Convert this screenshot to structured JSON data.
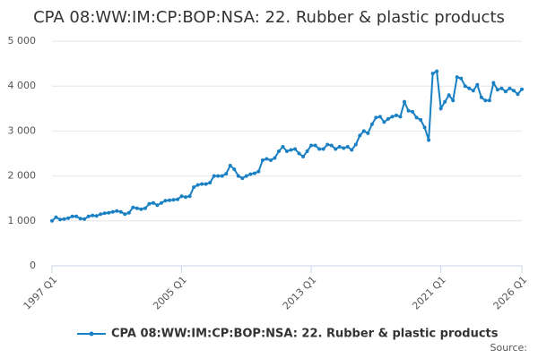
{
  "chart_data": {
    "type": "line",
    "title": "CPA 08:WW:IM:CP:BOP:NSA: 22. Rubber & plastic products",
    "categories": [
      "1997 Q1",
      null,
      null,
      null,
      null,
      null,
      null,
      null,
      null,
      null,
      null,
      null,
      null,
      null,
      null,
      null,
      null,
      null,
      null,
      null,
      null,
      null,
      null,
      null,
      null,
      null,
      null,
      null,
      null,
      null,
      null,
      null,
      "2005 Q1",
      null,
      null,
      null,
      null,
      null,
      null,
      null,
      null,
      null,
      null,
      null,
      null,
      null,
      null,
      null,
      null,
      null,
      null,
      null,
      null,
      null,
      null,
      null,
      null,
      null,
      null,
      null,
      null,
      null,
      null,
      null,
      "2013 Q1",
      null,
      null,
      null,
      null,
      null,
      null,
      null,
      null,
      null,
      null,
      null,
      null,
      null,
      null,
      null,
      null,
      null,
      null,
      null,
      null,
      null,
      null,
      null,
      null,
      null,
      null,
      null,
      null,
      null,
      null,
      null,
      "2021 Q1",
      null,
      null,
      null,
      null,
      null,
      null,
      null,
      null,
      null,
      null,
      null,
      null,
      null,
      null,
      null,
      null,
      null,
      null,
      null,
      "2026 Q1"
    ],
    "series": [
      {
        "name": "CPA 08:WW:IM:CP:BOP:NSA: 22. Rubber & plastic products",
        "color": "#1a80c4",
        "values": [
          1000,
          1080,
          1030,
          1040,
          1060,
          1100,
          1100,
          1050,
          1040,
          1100,
          1120,
          1110,
          1150,
          1170,
          1180,
          1200,
          1220,
          1200,
          1150,
          1180,
          1300,
          1280,
          1260,
          1280,
          1380,
          1400,
          1350,
          1400,
          1450,
          1460,
          1470,
          1480,
          1550,
          1530,
          1550,
          1750,
          1800,
          1820,
          1820,
          1850,
          2000,
          2000,
          2000,
          2050,
          2230,
          2150,
          2000,
          1950,
          2000,
          2040,
          2060,
          2100,
          2350,
          2380,
          2350,
          2400,
          2550,
          2650,
          2550,
          2580,
          2600,
          2500,
          2430,
          2550,
          2680,
          2680,
          2600,
          2600,
          2700,
          2680,
          2600,
          2650,
          2620,
          2650,
          2580,
          2700,
          2900,
          3000,
          2950,
          3150,
          3300,
          3320,
          3200,
          3270,
          3320,
          3350,
          3320,
          3650,
          3450,
          3430,
          3300,
          3250,
          3080,
          2800,
          4280,
          4330,
          3500,
          3650,
          3800,
          3680,
          4200,
          4170,
          4000,
          3950,
          3900,
          4030,
          3750,
          3680,
          3680,
          4070,
          3920,
          3950,
          3880,
          3950,
          3900,
          3820,
          3930
        ]
      }
    ],
    "ylim": [
      0,
      5000
    ],
    "yticks": [
      0,
      {
        "value": 1000,
        "label": "1 000"
      },
      {
        "value": 2000,
        "label": "2 000"
      },
      {
        "value": 3000,
        "label": "3 000"
      },
      {
        "value": 4000,
        "label": "4 000"
      },
      {
        "value": 5000,
        "label": "5 000"
      }
    ],
    "grid": true,
    "source": "Source:"
  }
}
